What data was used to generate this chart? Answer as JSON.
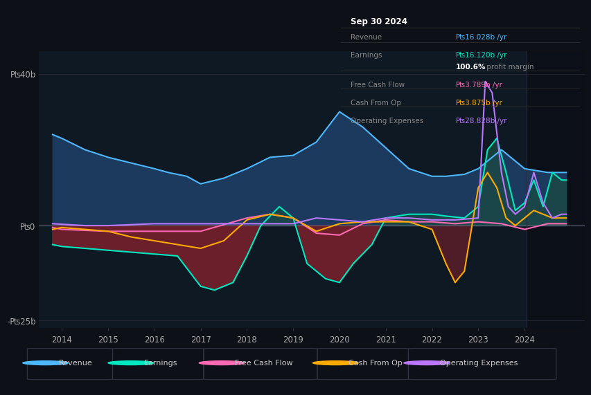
{
  "background_color": "#0d1117",
  "plot_bg_color": "#0f1923",
  "right_bg_color": "#0a0f18",
  "ylabel_top": "₧40b",
  "ylabel_zero": "₧0",
  "ylabel_bottom": "-₧25b",
  "ylim": [
    -27,
    46
  ],
  "xlim": [
    2013.5,
    2025.3
  ],
  "x_ticks": [
    2014,
    2015,
    2016,
    2017,
    2018,
    2019,
    2020,
    2021,
    2022,
    2023,
    2024
  ],
  "divider_x": 2024.05,
  "legend_items": [
    {
      "label": "Revenue",
      "color": "#4db8ff"
    },
    {
      "label": "Earnings",
      "color": "#00e8c0"
    },
    {
      "label": "Free Cash Flow",
      "color": "#ff69b4"
    },
    {
      "label": "Cash From Op",
      "color": "#ffaa00"
    },
    {
      "label": "Operating Expenses",
      "color": "#bb77ff"
    }
  ],
  "info_box": {
    "title": "Sep 30 2024",
    "rows": [
      {
        "label": "Revenue",
        "value": "₧16.028b /yr",
        "label_color": "#888888",
        "value_color": "#4db8ff"
      },
      {
        "label": "Earnings",
        "value": "₧16.120b /yr",
        "label_color": "#888888",
        "value_color": "#00e8c0"
      },
      {
        "label": "",
        "value": "100.6%",
        "label_color": "#888888",
        "value_color": "#ffffff",
        "suffix": " profit margin"
      },
      {
        "label": "Free Cash Flow",
        "value": "₧3.789b /yr",
        "label_color": "#888888",
        "value_color": "#ff69b4"
      },
      {
        "label": "Cash From Op",
        "value": "₧3.875b /yr",
        "label_color": "#888888",
        "value_color": "#ffaa00"
      },
      {
        "label": "Operating Expenses",
        "value": "₧28.828b /yr",
        "label_color": "#888888",
        "value_color": "#bb77ff"
      }
    ]
  },
  "revenue_x": [
    2013.8,
    2014.0,
    2014.5,
    2015.0,
    2015.5,
    2016.0,
    2016.3,
    2016.7,
    2017.0,
    2017.5,
    2018.0,
    2018.5,
    2019.0,
    2019.5,
    2020.0,
    2020.5,
    2021.0,
    2021.5,
    2022.0,
    2022.3,
    2022.7,
    2023.0,
    2023.5,
    2024.0,
    2024.5,
    2024.9
  ],
  "revenue_y": [
    24,
    23,
    20,
    18,
    16.5,
    15,
    14,
    13,
    11,
    12.5,
    15,
    18,
    18.5,
    22,
    30,
    26,
    20.5,
    15,
    13,
    13,
    13.5,
    15,
    20,
    15,
    14,
    14
  ],
  "earnings_x": [
    2013.8,
    2014.0,
    2014.5,
    2015.0,
    2015.5,
    2016.0,
    2016.5,
    2017.0,
    2017.3,
    2017.7,
    2018.0,
    2018.3,
    2018.7,
    2019.0,
    2019.3,
    2019.7,
    2020.0,
    2020.3,
    2020.7,
    2021.0,
    2021.5,
    2022.0,
    2022.3,
    2022.7,
    2023.0,
    2023.2,
    2023.4,
    2023.6,
    2023.8,
    2024.0,
    2024.2,
    2024.4,
    2024.6,
    2024.8,
    2024.9
  ],
  "earnings_y": [
    -5,
    -5.5,
    -6,
    -6.5,
    -7,
    -7.5,
    -8,
    -16,
    -17,
    -15,
    -8,
    0,
    5,
    2,
    -10,
    -14,
    -15,
    -10,
    -5,
    2,
    3,
    3,
    2.5,
    2,
    5,
    20,
    23,
    14,
    4,
    6,
    12,
    5,
    14,
    12,
    12
  ],
  "fcf_x": [
    2013.8,
    2014.0,
    2015.0,
    2016.0,
    2017.0,
    2018.0,
    2018.5,
    2019.0,
    2019.5,
    2020.0,
    2020.5,
    2021.0,
    2021.5,
    2022.0,
    2022.5,
    2023.0,
    2023.5,
    2024.0,
    2024.5,
    2024.9
  ],
  "fcf_y": [
    -0.5,
    -1,
    -1.5,
    -1.5,
    -1.5,
    2,
    3,
    2,
    -2,
    -2.5,
    0.5,
    1.5,
    1,
    1,
    0.5,
    1,
    0.5,
    -1,
    0.5,
    0.5
  ],
  "cfo_x": [
    2013.8,
    2014.0,
    2014.5,
    2015.0,
    2015.5,
    2016.0,
    2016.5,
    2017.0,
    2017.5,
    2018.0,
    2018.5,
    2019.0,
    2019.5,
    2020.0,
    2020.5,
    2021.0,
    2021.5,
    2022.0,
    2022.3,
    2022.5,
    2022.7,
    2023.0,
    2023.2,
    2023.4,
    2023.6,
    2023.8,
    2024.0,
    2024.2,
    2024.4,
    2024.6,
    2024.8,
    2024.9
  ],
  "cfo_y": [
    -1,
    -0.5,
    -1,
    -1.5,
    -3,
    -4,
    -5,
    -6,
    -4,
    1.5,
    3,
    2,
    -1.5,
    0.5,
    1,
    1,
    1,
    -1,
    -10,
    -15,
    -12,
    10,
    14,
    10,
    2,
    0,
    2,
    4,
    3,
    2,
    2,
    2
  ],
  "oe_x": [
    2013.8,
    2014.5,
    2015.0,
    2016.0,
    2017.0,
    2018.0,
    2019.0,
    2019.5,
    2020.0,
    2020.5,
    2021.0,
    2021.5,
    2022.0,
    2022.5,
    2023.0,
    2023.15,
    2023.3,
    2023.5,
    2023.65,
    2023.8,
    2024.0,
    2024.2,
    2024.4,
    2024.6,
    2024.8,
    2024.9
  ],
  "oe_y": [
    0.5,
    0,
    0,
    0.5,
    0.5,
    0.5,
    0.5,
    2,
    1.5,
    1,
    2,
    2,
    1.5,
    1.5,
    2,
    38,
    35,
    14,
    5,
    3,
    5,
    14,
    6,
    2,
    3,
    3
  ]
}
